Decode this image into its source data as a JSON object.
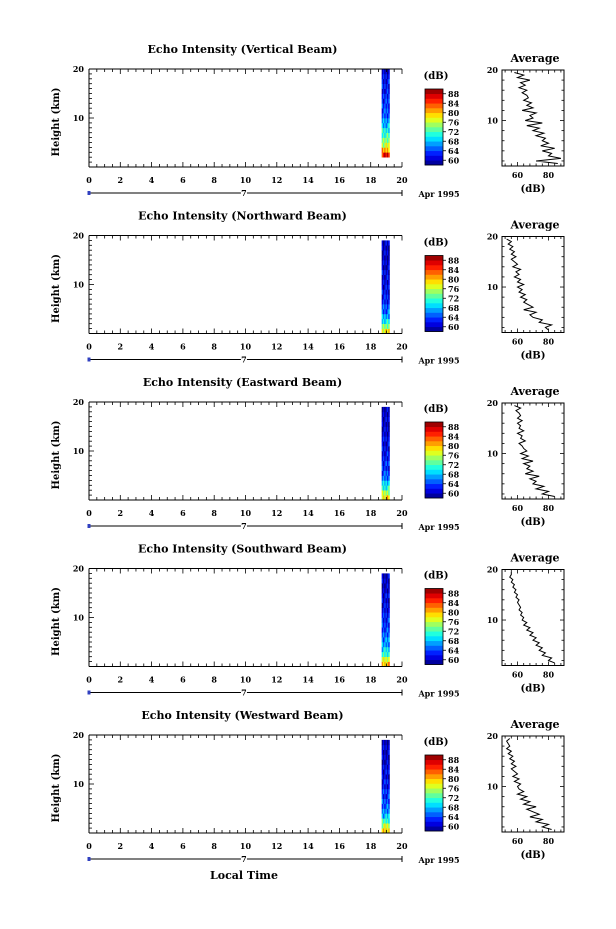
{
  "figure": {
    "x_label": "Local Time",
    "date_label": "Apr 1995",
    "day_label": "7",
    "colorbar_unit": "(dB)",
    "colorbar_ticks": [
      "88",
      "84",
      "80",
      "76",
      "72",
      "68",
      "64",
      "60"
    ],
    "average_title": "Average",
    "average_xlabel": "(dB)",
    "height_label": "Height (km)"
  },
  "chart_data": [
    {
      "type": "heatmap",
      "title": "Echo Intensity (Vertical Beam)",
      "xlabel": "Local Time",
      "ylabel": "Height (km)",
      "x_ticks": [
        0,
        2,
        4,
        6,
        8,
        10,
        12,
        14,
        16,
        18,
        20
      ],
      "y_ticks": [
        10,
        20
      ],
      "xlim": [
        0,
        20
      ],
      "ylim": [
        0,
        20
      ],
      "data_time_range": [
        18.7,
        19.2
      ],
      "colorbar": {
        "label": "(dB)",
        "range": [
          58,
          90
        ],
        "ticks": [
          60,
          64,
          68,
          72,
          76,
          80,
          84,
          88
        ]
      },
      "profile_heights": [
        2.5,
        3.5,
        4.5,
        5.5,
        6.5,
        7.5,
        8.5,
        9.5,
        10.5,
        11.5,
        12.5,
        13.5,
        14.5,
        15.5,
        16.5,
        17.5,
        18.5,
        19.5
      ],
      "profile_db": [
        86,
        81,
        76,
        74,
        72,
        70,
        68,
        66,
        65,
        64,
        64,
        63,
        63,
        62,
        62,
        62,
        61,
        61
      ],
      "average": {
        "title": "Average",
        "xlabel": "(dB)",
        "x_ticks": [
          60,
          80
        ],
        "xlim": [
          50,
          90
        ],
        "y_ticks": [
          10,
          20
        ],
        "ylim": [
          1,
          20
        ],
        "heights": [
          1.5,
          2,
          2.5,
          3,
          3.5,
          4,
          4.5,
          5,
          5.5,
          6,
          6.5,
          7,
          7.5,
          8,
          8.5,
          9,
          9.5,
          10,
          10.5,
          11,
          11.5,
          12,
          12.5,
          13,
          13.5,
          14,
          14.5,
          15,
          15.5,
          16,
          16.5,
          17,
          17.5,
          18,
          18.5,
          19,
          19.5
        ],
        "values": [
          86,
          72,
          88,
          80,
          82,
          76,
          84,
          75,
          80,
          76,
          78,
          72,
          77,
          70,
          74,
          66,
          76,
          65,
          70,
          68,
          72,
          63,
          70,
          66,
          69,
          64,
          67,
          66,
          63,
          66,
          61,
          65,
          62,
          68,
          60,
          64,
          58
        ]
      }
    },
    {
      "type": "heatmap",
      "title": "Echo Intensity (Northward Beam)",
      "xlabel": "Local Time",
      "ylabel": "Height (km)",
      "x_ticks": [
        0,
        2,
        4,
        6,
        8,
        10,
        12,
        14,
        16,
        18,
        20
      ],
      "y_ticks": [
        10,
        20
      ],
      "xlim": [
        0,
        20
      ],
      "ylim": [
        0,
        20
      ],
      "data_time_range": [
        18.7,
        19.2
      ],
      "colorbar": {
        "label": "(dB)",
        "range": [
          58,
          90
        ],
        "ticks": [
          60,
          64,
          68,
          72,
          76,
          80,
          84,
          88
        ]
      },
      "profile_heights": [
        0.5,
        1.5,
        2.5,
        3.5,
        4.5,
        5.5,
        6.5,
        7.5,
        8.5,
        9.5,
        10.5,
        11.5,
        12.5,
        13.5,
        14.5,
        15.5,
        16.5,
        17.5,
        18.5
      ],
      "profile_db": [
        78,
        74,
        70,
        67,
        65,
        64,
        63,
        62,
        62,
        61,
        61,
        61,
        61,
        60,
        60,
        60,
        60,
        60,
        60
      ],
      "average": {
        "title": "Average",
        "xlabel": "(dB)",
        "x_ticks": [
          60,
          80
        ],
        "xlim": [
          50,
          90
        ],
        "y_ticks": [
          10,
          20
        ],
        "ylim": [
          1,
          20
        ],
        "heights": [
          1.5,
          2,
          2.5,
          3,
          3.5,
          4,
          4.5,
          5,
          5.5,
          6,
          6.5,
          7,
          7.5,
          8,
          8.5,
          9,
          9.5,
          10,
          10.5,
          11,
          11.5,
          12,
          12.5,
          13,
          13.5,
          14,
          14.5,
          15,
          15.5,
          16,
          16.5,
          17,
          17.5,
          18,
          18.5,
          19,
          19.5
        ],
        "values": [
          80,
          78,
          82,
          74,
          76,
          70,
          68,
          72,
          64,
          70,
          67,
          64,
          66,
          62,
          65,
          61,
          63,
          60,
          64,
          60,
          62,
          58,
          61,
          59,
          62,
          57,
          60,
          58,
          56,
          59,
          56,
          58,
          55,
          57,
          54,
          56,
          53
        ]
      }
    },
    {
      "type": "heatmap",
      "title": "Echo Intensity (Eastward Beam)",
      "xlabel": "Local Time",
      "ylabel": "Height (km)",
      "x_ticks": [
        0,
        2,
        4,
        6,
        8,
        10,
        12,
        14,
        16,
        18,
        20
      ],
      "y_ticks": [
        10,
        20
      ],
      "xlim": [
        0,
        20
      ],
      "ylim": [
        0,
        20
      ],
      "data_time_range": [
        18.7,
        19.2
      ],
      "colorbar": {
        "label": "(dB)",
        "range": [
          58,
          90
        ],
        "ticks": [
          60,
          64,
          68,
          72,
          76,
          80,
          84,
          88
        ]
      },
      "profile_heights": [
        0.5,
        1.5,
        2.5,
        3.5,
        4.5,
        5.5,
        6.5,
        7.5,
        8.5,
        9.5,
        10.5,
        11.5,
        12.5,
        13.5,
        14.5,
        15.5,
        16.5,
        17.5,
        18.5
      ],
      "profile_db": [
        79,
        75,
        71,
        68,
        66,
        64,
        63,
        63,
        62,
        62,
        61,
        61,
        61,
        61,
        60,
        60,
        60,
        60,
        60
      ],
      "average": {
        "title": "Average",
        "xlabel": "(dB)",
        "x_ticks": [
          60,
          80
        ],
        "xlim": [
          50,
          90
        ],
        "y_ticks": [
          10,
          20
        ],
        "ylim": [
          1,
          20
        ],
        "heights": [
          1.5,
          2,
          2.5,
          3,
          3.5,
          4,
          4.5,
          5,
          5.5,
          6,
          6.5,
          7,
          7.5,
          8,
          8.5,
          9,
          9.5,
          10,
          10.5,
          11,
          11.5,
          12,
          12.5,
          13,
          13.5,
          14,
          14.5,
          15,
          15.5,
          16,
          16.5,
          17,
          17.5,
          18,
          18.5,
          19,
          19.5
        ],
        "values": [
          84,
          76,
          80,
          72,
          77,
          70,
          72,
          68,
          74,
          65,
          70,
          66,
          68,
          64,
          70,
          63,
          67,
          62,
          66,
          64,
          63,
          61,
          65,
          62,
          63,
          60,
          64,
          61,
          62,
          60,
          63,
          60,
          62,
          61,
          59,
          62,
          58
        ]
      }
    },
    {
      "type": "heatmap",
      "title": "Echo Intensity (Southward Beam)",
      "xlabel": "Local Time",
      "ylabel": "Height (km)",
      "x_ticks": [
        0,
        2,
        4,
        6,
        8,
        10,
        12,
        14,
        16,
        18,
        20
      ],
      "y_ticks": [
        10,
        20
      ],
      "xlim": [
        0,
        20
      ],
      "ylim": [
        0,
        20
      ],
      "data_time_range": [
        18.7,
        19.2
      ],
      "colorbar": {
        "label": "(dB)",
        "range": [
          58,
          90
        ],
        "ticks": [
          60,
          64,
          68,
          72,
          76,
          80,
          84,
          88
        ]
      },
      "profile_heights": [
        0.5,
        1.5,
        2.5,
        3.5,
        4.5,
        5.5,
        6.5,
        7.5,
        8.5,
        9.5,
        10.5,
        11.5,
        12.5,
        13.5,
        14.5,
        15.5,
        16.5,
        17.5,
        18.5
      ],
      "profile_db": [
        80,
        76,
        72,
        69,
        67,
        66,
        65,
        64,
        63,
        63,
        62,
        62,
        61,
        61,
        61,
        60,
        60,
        60,
        60
      ],
      "average": {
        "title": "Average",
        "xlabel": "(dB)",
        "x_ticks": [
          60,
          80
        ],
        "xlim": [
          50,
          90
        ],
        "y_ticks": [
          10,
          20
        ],
        "ylim": [
          1,
          20
        ],
        "heights": [
          1.5,
          2,
          2.5,
          3,
          3.5,
          4,
          4.5,
          5,
          5.5,
          6,
          6.5,
          7,
          7.5,
          8,
          8.5,
          9,
          9.5,
          10,
          10.5,
          11,
          11.5,
          12,
          12.5,
          13,
          13.5,
          14,
          14.5,
          15,
          15.5,
          16,
          16.5,
          17,
          17.5,
          18,
          18.5,
          19,
          19.5
        ],
        "values": [
          84,
          80,
          82,
          76,
          78,
          74,
          76,
          72,
          74,
          70,
          72,
          68,
          70,
          66,
          68,
          64,
          66,
          63,
          64,
          62,
          63,
          61,
          62,
          61,
          60,
          61,
          59,
          60,
          58,
          59,
          57,
          58,
          56,
          57,
          55,
          56,
          56
        ]
      }
    },
    {
      "type": "heatmap",
      "title": "Echo Intensity (Westward Beam)",
      "xlabel": "Local Time",
      "ylabel": "Height (km)",
      "x_ticks": [
        0,
        2,
        4,
        6,
        8,
        10,
        12,
        14,
        16,
        18,
        20
      ],
      "y_ticks": [
        10,
        20
      ],
      "xlim": [
        0,
        20
      ],
      "ylim": [
        0,
        20
      ],
      "data_time_range": [
        18.7,
        19.2
      ],
      "colorbar": {
        "label": "(dB)",
        "range": [
          58,
          90
        ],
        "ticks": [
          60,
          64,
          68,
          72,
          76,
          80,
          84,
          88
        ]
      },
      "profile_heights": [
        0.5,
        1.5,
        2.5,
        3.5,
        4.5,
        5.5,
        6.5,
        7.5,
        8.5,
        9.5,
        10.5,
        11.5,
        12.5,
        13.5,
        14.5,
        15.5,
        16.5,
        17.5,
        18.5
      ],
      "profile_db": [
        80,
        76,
        72,
        68,
        66,
        65,
        64,
        63,
        63,
        62,
        62,
        61,
        61,
        61,
        60,
        60,
        60,
        60,
        60
      ],
      "average": {
        "title": "Average",
        "xlabel": "(dB)",
        "x_ticks": [
          60,
          80
        ],
        "xlim": [
          50,
          90
        ],
        "y_ticks": [
          10,
          20
        ],
        "ylim": [
          1,
          20
        ],
        "heights": [
          1.5,
          2,
          2.5,
          3,
          3.5,
          4,
          4.5,
          5,
          5.5,
          6,
          6.5,
          7,
          7.5,
          8,
          8.5,
          9,
          9.5,
          10,
          10.5,
          11,
          11.5,
          12,
          12.5,
          13,
          13.5,
          14,
          14.5,
          15,
          15.5,
          16,
          16.5,
          17,
          17.5,
          18,
          18.5,
          19,
          19.5
        ],
        "values": [
          82,
          76,
          80,
          72,
          76,
          68,
          74,
          70,
          66,
          72,
          64,
          68,
          62,
          66,
          60,
          64,
          61,
          60,
          62,
          58,
          61,
          57,
          60,
          58,
          56,
          59,
          56,
          58,
          55,
          57,
          54,
          56,
          53,
          55,
          54,
          53,
          55
        ]
      }
    }
  ]
}
